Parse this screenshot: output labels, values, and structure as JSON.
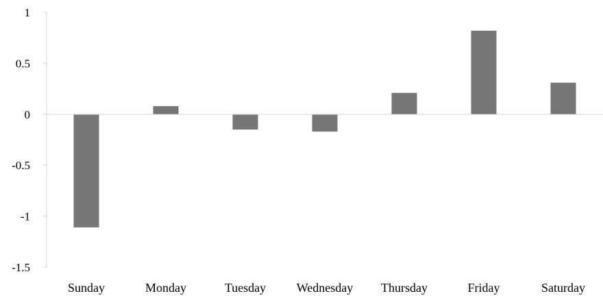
{
  "chart_data": {
    "type": "bar",
    "title": "",
    "xlabel": "",
    "ylabel": "",
    "categories": [
      "Sunday",
      "Monday",
      "Tuesday",
      "Wednesday",
      "Thursday",
      "Friday",
      "Saturday"
    ],
    "values": [
      -1.11,
      0.08,
      -0.15,
      -0.17,
      0.21,
      0.82,
      0.31
    ],
    "ylim": [
      -1.5,
      1
    ],
    "yticks": [
      1,
      0.5,
      0,
      -0.5,
      -1,
      -1.5
    ],
    "ytick_labels": [
      "1",
      "0.5",
      "0",
      "-0.5",
      "-1",
      "-1.5"
    ],
    "grid": false,
    "bar_color": "#767676",
    "axis_color": "#d4d4d4"
  }
}
